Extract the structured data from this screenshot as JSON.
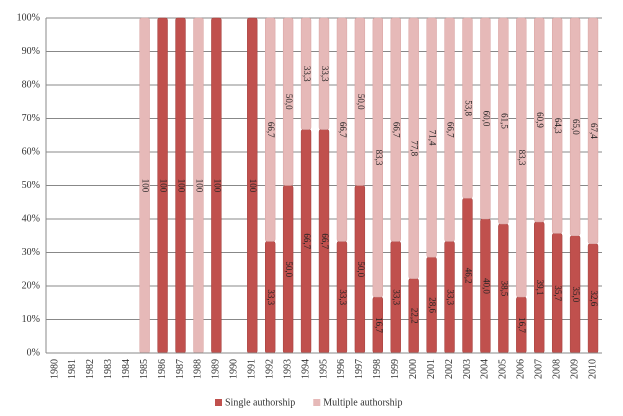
{
  "chart_data": {
    "type": "bar",
    "stacked": true,
    "categories": [
      "1980",
      "1981",
      "1982",
      "1983",
      "1984",
      "1985",
      "1986",
      "1987",
      "1988",
      "1989",
      "1990",
      "1991",
      "1992",
      "1993",
      "1994",
      "1995",
      "1996",
      "1997",
      "1998",
      "1999",
      "2000",
      "2001",
      "2002",
      "2003",
      "2004",
      "2005",
      "2006",
      "2007",
      "2008",
      "2009",
      "2010"
    ],
    "series": [
      {
        "name": "Single authorship",
        "color": "#c0504d",
        "values": [
          0,
          0,
          0,
          0,
          0,
          0,
          100,
          100,
          0,
          100,
          0,
          100,
          33.3,
          50,
          66.7,
          66.7,
          33.3,
          50,
          16.7,
          33.3,
          22.2,
          28.6,
          33.3,
          46.2,
          40,
          38.5,
          16.7,
          39.1,
          35.7,
          35,
          32.6
        ],
        "value_labels": [
          null,
          null,
          null,
          null,
          null,
          null,
          "100",
          "100",
          null,
          "100",
          null,
          "100",
          "33,3",
          "50,0",
          "66,7",
          "66,7",
          "33,3",
          "50,0",
          "16,7",
          "33,3",
          "22,2",
          "28,6",
          "33,3",
          "46,2",
          "40,0",
          "38,5",
          "16,7",
          "39,1",
          "35,7",
          "35,0",
          "32,6"
        ]
      },
      {
        "name": "Multiple authorship",
        "color": "#e6b9b8",
        "values": [
          0,
          0,
          0,
          0,
          0,
          100,
          0,
          0,
          100,
          0,
          0,
          0,
          66.7,
          50,
          33.3,
          33.3,
          66.7,
          50,
          83.3,
          66.7,
          77.8,
          71.4,
          66.7,
          53.8,
          60,
          61.5,
          83.3,
          60.9,
          64.3,
          65,
          67.4
        ],
        "value_labels": [
          null,
          null,
          null,
          null,
          null,
          "100",
          null,
          null,
          "100",
          null,
          null,
          null,
          "66,7",
          "50,0",
          "33,3",
          "33,3",
          "66,7",
          "50,0",
          "83,3",
          "66,7",
          "77,8",
          "71,4",
          "66,7",
          "53,8",
          "60,0",
          "61,5",
          "83,3",
          "60,9",
          "64,3",
          "65,0",
          "67,4"
        ]
      }
    ],
    "ylim": [
      0,
      100
    ],
    "yticks": [
      {
        "value": 0,
        "label": "0%"
      },
      {
        "value": 10,
        "label": "10%"
      },
      {
        "value": 20,
        "label": "20%"
      },
      {
        "value": 30,
        "label": "30%"
      },
      {
        "value": 40,
        "label": "40%"
      },
      {
        "value": 50,
        "label": "50%"
      },
      {
        "value": 60,
        "label": "60%"
      },
      {
        "value": 70,
        "label": "70%"
      },
      {
        "value": 80,
        "label": "80%"
      },
      {
        "value": 90,
        "label": "90%"
      },
      {
        "value": 100,
        "label": "100%"
      }
    ],
    "grid": true,
    "legend": "bottom"
  }
}
